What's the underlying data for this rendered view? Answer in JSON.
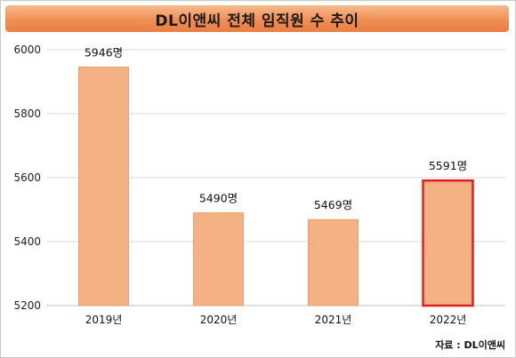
{
  "title": "DL이앤씨 전체 임직원 수 추이",
  "source": "자료 : DL이앤씨",
  "colors": {
    "bar": "#f4b183",
    "bar_edge": "#e9a070",
    "highlight_edge": "#e02020",
    "grid": "#d9d9d9"
  },
  "chart_data": {
    "type": "bar",
    "categories": [
      "2019년",
      "2020년",
      "2021년",
      "2022년"
    ],
    "values": [
      5946,
      5490,
      5469,
      5591
    ],
    "value_labels": [
      "5946명",
      "5490명",
      "5469명",
      "5591명"
    ],
    "ylim": [
      5200,
      6000
    ],
    "yticks": [
      5200,
      5400,
      5600,
      5800,
      6000
    ],
    "ytick_labels": [
      "5200",
      "5400",
      "5600",
      "5800",
      "6000"
    ],
    "highlight_index": 3,
    "grid": true
  }
}
